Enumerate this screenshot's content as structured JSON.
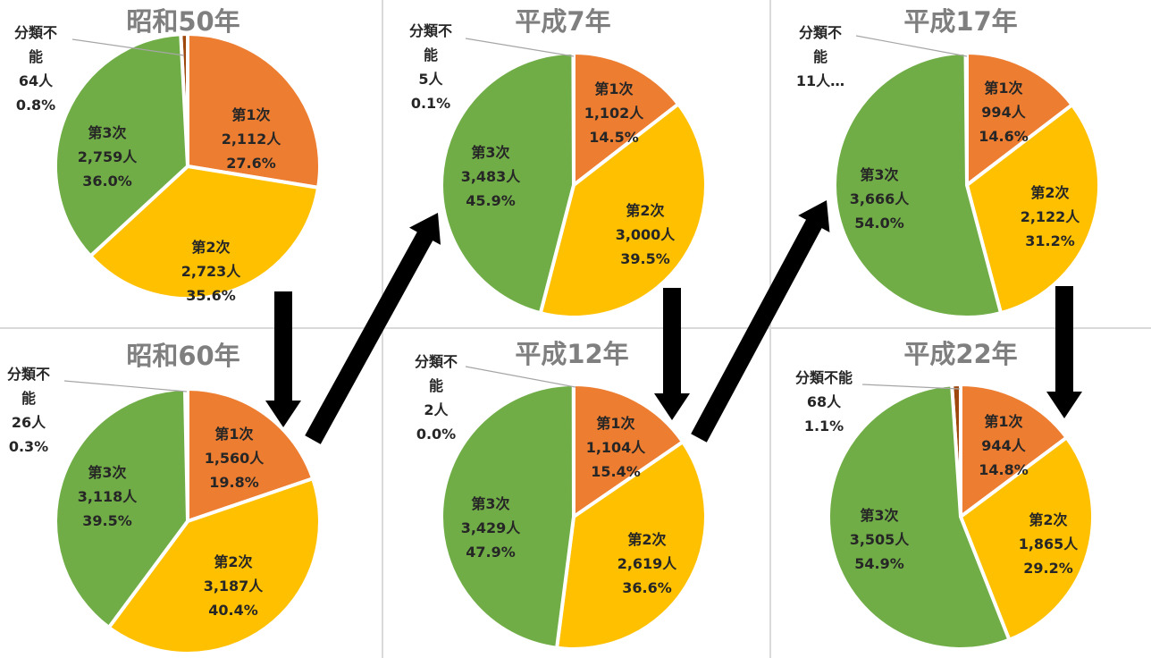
{
  "colors": {
    "primary": "#ED7D31",
    "secondary": "#FFC000",
    "tertiary": "#70AD47",
    "unclassified": "#9E480E",
    "title": "#7F7F7F",
    "arrow": "#000000",
    "divider": "#D9D9D9"
  },
  "chart_data": [
    {
      "type": "pie",
      "title": "昭和50年",
      "slices": [
        {
          "name": "分類不能",
          "count": "64人",
          "percent": "0.8%",
          "value": 64,
          "label_lines": [
            "分類不",
            "能",
            "64人",
            "0.8%"
          ]
        },
        {
          "name": "第1次",
          "count": "2,112人",
          "percent": "27.6%",
          "value": 2112
        },
        {
          "name": "第2次",
          "count": "2,723人",
          "percent": "35.6%",
          "value": 2723
        },
        {
          "name": "第3次",
          "count": "2,759人",
          "percent": "36.0%",
          "value": 2759
        }
      ]
    },
    {
      "type": "pie",
      "title": "昭和60年",
      "slices": [
        {
          "name": "分類不能",
          "count": "26人",
          "percent": "0.3%",
          "value": 26,
          "label_lines": [
            "分類不",
            "能",
            "26人",
            "0.3%"
          ]
        },
        {
          "name": "第1次",
          "count": "1,560人",
          "percent": "19.8%",
          "value": 1560
        },
        {
          "name": "第2次",
          "count": "3,187人",
          "percent": "40.4%",
          "value": 3187
        },
        {
          "name": "第3次",
          "count": "3,118人",
          "percent": "39.5%",
          "value": 3118
        }
      ]
    },
    {
      "type": "pie",
      "title": "平成7年",
      "slices": [
        {
          "name": "分類不能",
          "count": "5人",
          "percent": "0.1%",
          "value": 5,
          "label_lines": [
            "分類不",
            "能",
            "5人",
            "0.1%"
          ]
        },
        {
          "name": "第1次",
          "count": "1,102人",
          "percent": "14.5%",
          "value": 1102
        },
        {
          "name": "第2次",
          "count": "3,000人",
          "percent": "39.5%",
          "value": 3000
        },
        {
          "name": "第3次",
          "count": "3,483人",
          "percent": "45.9%",
          "value": 3483
        }
      ]
    },
    {
      "type": "pie",
      "title": "平成12年",
      "slices": [
        {
          "name": "分類不能",
          "count": "2人",
          "percent": "0.0%",
          "value": 2,
          "label_lines": [
            "分類不",
            "能",
            "2人",
            "0.0%"
          ]
        },
        {
          "name": "第1次",
          "count": "1,104人",
          "percent": "15.4%",
          "value": 1104
        },
        {
          "name": "第2次",
          "count": "2,619人",
          "percent": "36.6%",
          "value": 2619
        },
        {
          "name": "第3次",
          "count": "3,429人",
          "percent": "47.9%",
          "value": 3429
        }
      ]
    },
    {
      "type": "pie",
      "title": "平成17年",
      "slices": [
        {
          "name": "分類不能",
          "count": "11人…",
          "percent": "",
          "value": 11,
          "label_lines": [
            "分類不",
            "能",
            "11人…"
          ]
        },
        {
          "name": "第1次",
          "count": "994人",
          "percent": "14.6%",
          "value": 994
        },
        {
          "name": "第2次",
          "count": "2,122人",
          "percent": "31.2%",
          "value": 2122
        },
        {
          "name": "第3次",
          "count": "3,666人",
          "percent": "54.0%",
          "value": 3666
        }
      ]
    },
    {
      "type": "pie",
      "title": "平成22年",
      "slices": [
        {
          "name": "分類不能",
          "count": "68人",
          "percent": "1.1%",
          "value": 68,
          "label_lines": [
            "分類不能",
            "68人",
            "1.1%"
          ]
        },
        {
          "name": "第1次",
          "count": "944人",
          "percent": "14.8%",
          "value": 944
        },
        {
          "name": "第2次",
          "count": "1,865人",
          "percent": "29.2%",
          "value": 1865
        },
        {
          "name": "第3次",
          "count": "3,505人",
          "percent": "54.9%",
          "value": 3505
        }
      ]
    }
  ]
}
